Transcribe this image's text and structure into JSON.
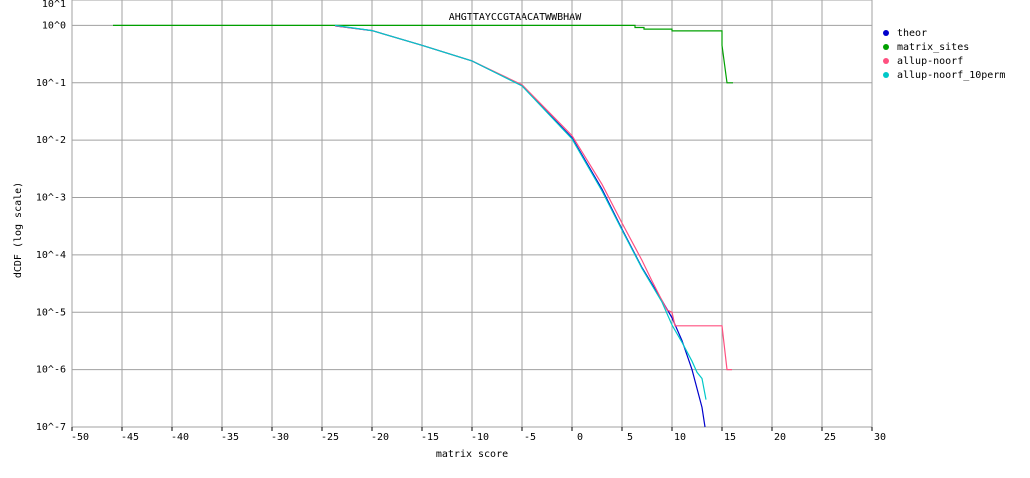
{
  "chart_data": {
    "type": "line",
    "title": "AHGTTAYCCGTAACATWWBHAW",
    "x_label": "matrix score",
    "y_label": "dCDF (log scale)",
    "xlim": [
      -50,
      30
    ],
    "xticks": [
      -50,
      -45,
      -40,
      -35,
      -30,
      -25,
      -20,
      -15,
      -10,
      -5,
      0,
      5,
      10,
      15,
      20,
      25,
      30
    ],
    "ylim": [
      1e-07,
      10
    ],
    "ylog": true,
    "grid": true,
    "legend": "right",
    "yticks": [
      {
        "value": 10,
        "label": "10^1"
      },
      {
        "value": 1,
        "label": "10^0"
      },
      {
        "value": 0.1,
        "label": "10^-1"
      },
      {
        "value": 0.01,
        "label": "10^-2"
      },
      {
        "value": 0.001,
        "label": "10^-3"
      },
      {
        "value": 0.0001,
        "label": "10^-4"
      },
      {
        "value": 1e-05,
        "label": "10^-5"
      },
      {
        "value": 1e-06,
        "label": "10^-6"
      },
      {
        "value": 1e-07,
        "label": "10^-7"
      }
    ],
    "series": [
      {
        "name": "theor",
        "color": "#0000cc",
        "x": [
          -23.7,
          -20,
          -15,
          -10,
          -5,
          0,
          3,
          5,
          7,
          9,
          10,
          11,
          12,
          13,
          13.3
        ],
        "values": [
          0.98,
          0.81,
          0.45,
          0.24,
          0.089,
          0.011,
          0.0014,
          0.00028,
          6e-05,
          1.6e-05,
          8e-06,
          3.2e-06,
          1e-06,
          2.2e-07,
          1e-07
        ]
      },
      {
        "name": "matrix_sites",
        "color": "#00a000",
        "x": [
          -45.9,
          6.3,
          6.3,
          7.2,
          7.2,
          10,
          10,
          15,
          15,
          15.5,
          16.1
        ],
        "values": [
          1,
          1,
          0.92,
          0.92,
          0.86,
          0.86,
          0.8,
          0.8,
          0.45,
          0.1,
          0.1
        ]
      },
      {
        "name": "allup-noorf",
        "color": "#ff5080",
        "x": [
          -23.7,
          -20,
          -15,
          -10,
          -5,
          0,
          3,
          5,
          7,
          8,
          9,
          9.5,
          10,
          10.3,
          15,
          15.5,
          16
        ],
        "values": [
          0.98,
          0.81,
          0.45,
          0.24,
          0.092,
          0.012,
          0.0017,
          0.00036,
          8e-05,
          3.5e-05,
          1.6e-05,
          1.1e-05,
          1e-05,
          5.8e-06,
          5.8e-06,
          1e-06,
          1e-06
        ]
      },
      {
        "name": "allup-noorf_10perm",
        "color": "#00c8c8",
        "x": [
          -23.7,
          -20,
          -15,
          -10,
          -5,
          0,
          3,
          5,
          7,
          9,
          10,
          11,
          12,
          12.5,
          13,
          13.4
        ],
        "values": [
          1,
          0.81,
          0.45,
          0.24,
          0.088,
          0.0105,
          0.0013,
          0.00027,
          5.8e-05,
          1.5e-05,
          6e-06,
          3e-06,
          1.4e-06,
          9e-07,
          7e-07,
          3e-07
        ]
      }
    ]
  }
}
